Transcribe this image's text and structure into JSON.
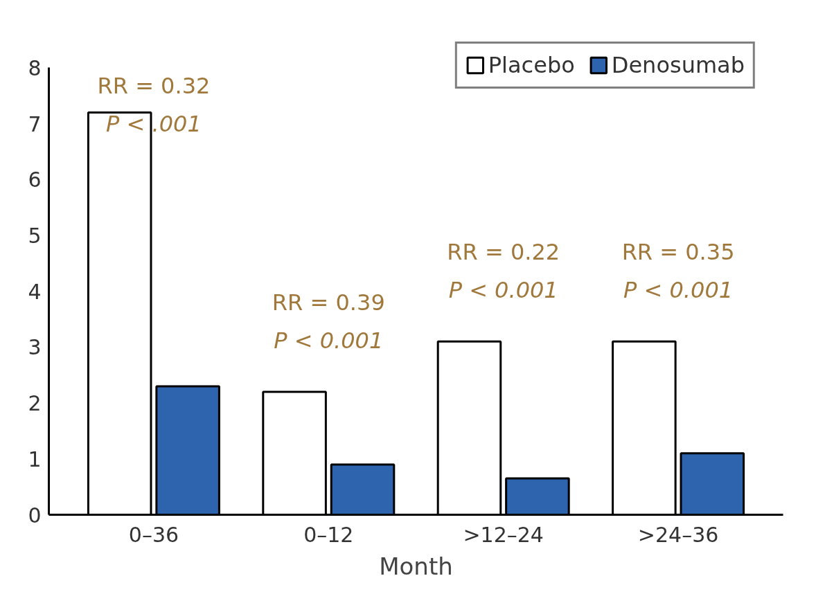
{
  "chart_data": {
    "type": "bar",
    "xlabel": "Month",
    "categories": [
      "0–36",
      "0–12",
      ">12–24",
      ">24–36"
    ],
    "series": [
      {
        "name": "Placebo",
        "color": "#ffffff",
        "values": [
          7.2,
          2.2,
          3.1,
          3.1
        ]
      },
      {
        "name": "Denosumab",
        "color": "#2e64ae",
        "values": [
          2.3,
          0.9,
          0.65,
          1.1
        ]
      }
    ],
    "ylim": [
      0,
      8
    ],
    "yticks": [
      0,
      1,
      2,
      3,
      4,
      5,
      6,
      7,
      8
    ],
    "grid": false,
    "legend": "top right",
    "annotations": [
      "RR = 0.32\nP < .001",
      "RR = 0.39\nP < 0.001",
      "RR = 0.22\nP < 0.001",
      "RR = 0.35\nP < 0.001"
    ]
  }
}
